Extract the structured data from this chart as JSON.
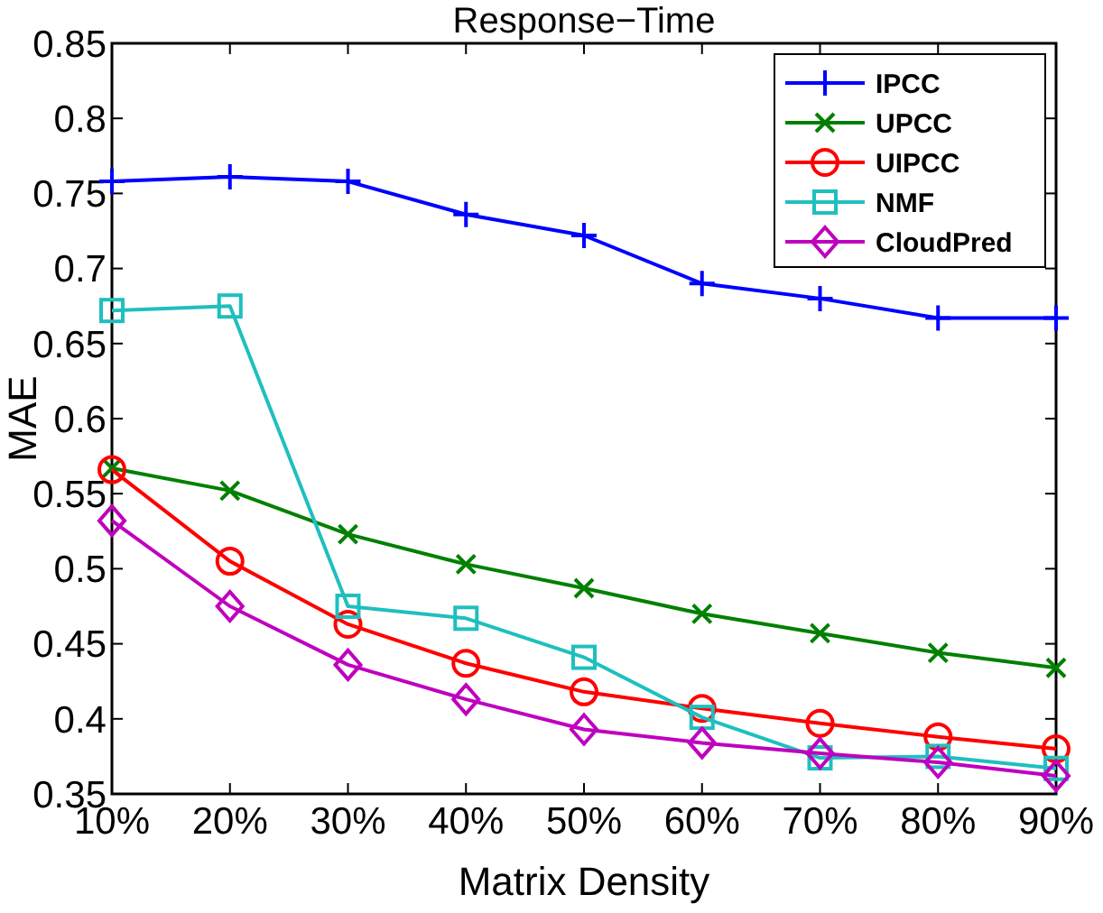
{
  "chart_data": {
    "type": "line",
    "title": "Response−Time",
    "xlabel": "Matrix Density",
    "ylabel": "MAE",
    "categories": [
      "10%",
      "20%",
      "30%",
      "40%",
      "50%",
      "60%",
      "70%",
      "80%",
      "90%"
    ],
    "series": [
      {
        "name": "IPCC",
        "color": "#0000ff",
        "marker": "plus",
        "values": [
          0.758,
          0.761,
          0.758,
          0.736,
          0.722,
          0.69,
          0.68,
          0.667,
          0.667
        ]
      },
      {
        "name": "UPCC",
        "color": "#008000",
        "marker": "cross",
        "values": [
          0.567,
          0.552,
          0.523,
          0.503,
          0.487,
          0.47,
          0.457,
          0.444,
          0.434
        ]
      },
      {
        "name": "UIPCC",
        "color": "#ff0000",
        "marker": "circle",
        "values": [
          0.566,
          0.505,
          0.463,
          0.437,
          0.418,
          0.407,
          0.397,
          0.388,
          0.38
        ]
      },
      {
        "name": "NMF",
        "color": "#1fbfbf",
        "marker": "square",
        "values": [
          0.672,
          0.675,
          0.475,
          0.467,
          0.441,
          0.401,
          0.374,
          0.375,
          0.367
        ]
      },
      {
        "name": "CloudPred",
        "color": "#bf00bf",
        "marker": "diamond",
        "values": [
          0.532,
          0.475,
          0.436,
          0.413,
          0.393,
          0.384,
          0.377,
          0.371,
          0.362
        ]
      }
    ],
    "ylim": [
      0.35,
      0.85
    ],
    "yticks": [
      0.35,
      0.4,
      0.45,
      0.5,
      0.55,
      0.6,
      0.65,
      0.7,
      0.75,
      0.8,
      0.85
    ],
    "grid": false,
    "legend": "top right",
    "line_style": "solid"
  }
}
